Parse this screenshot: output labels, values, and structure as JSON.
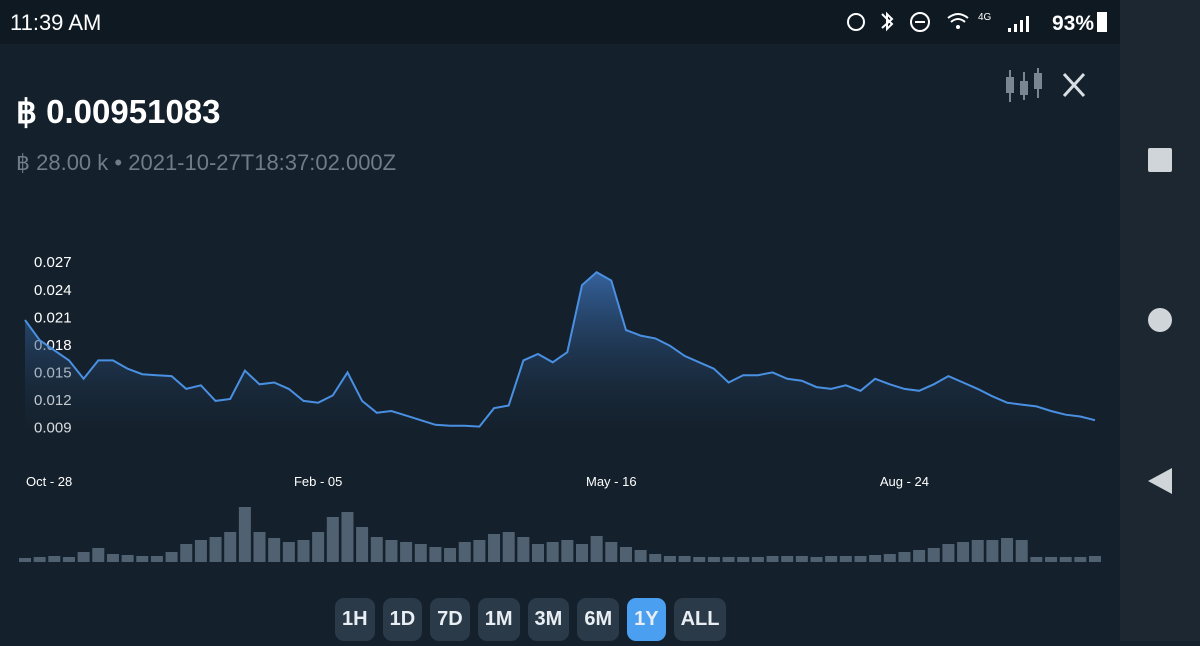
{
  "status_bar": {
    "time": "11:39 AM",
    "network": "4G",
    "battery": "93%"
  },
  "header": {
    "price": "฿ 0.00951083",
    "amount": "฿ 28.00 k",
    "separator": "•",
    "timestamp": "2021-10-27T18:37:02.000Z"
  },
  "chart_data": {
    "type": "line",
    "categories": [
      "Oct - 28",
      null,
      null,
      null,
      null,
      null,
      null,
      null,
      null,
      null,
      null,
      null,
      null,
      null,
      null,
      null,
      null,
      null,
      null,
      null,
      "Feb - 05",
      null,
      null,
      null,
      null,
      null,
      null,
      null,
      null,
      null,
      null,
      null,
      null,
      null,
      null,
      null,
      null,
      null,
      null,
      null,
      "May - 16",
      null,
      null,
      null,
      null,
      null,
      null,
      null,
      null,
      null,
      null,
      null,
      null,
      null,
      null,
      null,
      null,
      null,
      null,
      null,
      "Aug - 24",
      null,
      null,
      null,
      null,
      null,
      null,
      null,
      null,
      null,
      null,
      null,
      null,
      null
    ],
    "series": [
      {
        "color": "#4a90e2",
        "values": [
          0.0206,
          0.0184,
          0.0173,
          0.0162,
          0.0142,
          0.0162,
          0.0162,
          0.0153,
          0.0147,
          0.0146,
          0.0145,
          0.0131,
          0.0135,
          0.0118,
          0.012,
          0.0151,
          0.0136,
          0.0138,
          0.0131,
          0.0118,
          0.0116,
          0.0124,
          0.0149,
          0.0118,
          0.0105,
          0.0107,
          0.0102,
          0.0097,
          0.0092,
          0.0091,
          0.0091,
          0.009,
          0.011,
          0.0113,
          0.0162,
          0.0169,
          0.016,
          0.0171,
          0.0244,
          0.0258,
          0.0249,
          0.0195,
          0.0189,
          0.0186,
          0.0178,
          0.0167,
          0.016,
          0.0153,
          0.0138,
          0.0146,
          0.0146,
          0.0149,
          0.0142,
          0.014,
          0.0133,
          0.0131,
          0.0135,
          0.0129,
          0.0142,
          0.0136,
          0.0131,
          0.0129,
          0.0136,
          0.0145,
          0.0138,
          0.0131,
          0.0123,
          0.0116,
          0.0114,
          0.0112,
          0.0107,
          0.0103,
          0.0101,
          0.0097
        ]
      }
    ],
    "ylim": [
      0.007,
      0.028
    ],
    "yticks": [
      0.009,
      0.012,
      0.015,
      0.018,
      0.021,
      0.024,
      0.027
    ],
    "volume": {
      "color": "#5b6e7e",
      "vlim": [
        0,
        60
      ],
      "values": [
        4,
        5,
        6,
        5,
        10,
        14,
        8,
        7,
        6,
        6,
        10,
        18,
        22,
        25,
        30,
        55,
        30,
        24,
        20,
        22,
        30,
        45,
        50,
        35,
        25,
        22,
        20,
        18,
        15,
        14,
        20,
        22,
        28,
        30,
        25,
        18,
        20,
        22,
        18,
        26,
        20,
        15,
        12,
        8,
        6,
        6,
        5,
        5,
        5,
        5,
        5,
        6,
        6,
        6,
        5,
        6,
        6,
        6,
        7,
        8,
        10,
        12,
        14,
        18,
        20,
        22,
        22,
        24,
        22,
        5,
        5,
        5,
        5,
        6
      ]
    }
  },
  "range_buttons": {
    "items": [
      "1H",
      "1D",
      "7D",
      "1M",
      "3M",
      "6M",
      "1Y",
      "ALL"
    ],
    "selected": 6
  }
}
